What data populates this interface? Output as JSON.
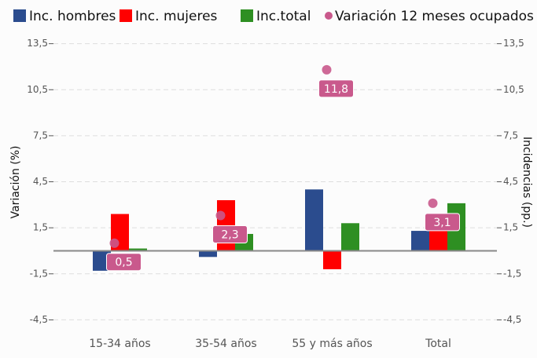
{
  "chart_data": {
    "type": "bar",
    "categories": [
      "15-34 años",
      "35-54 años",
      "55 y más años",
      "Total"
    ],
    "series": [
      {
        "name": "Inc. hombres",
        "color": "#2b4c8e",
        "values": [
          -1.3,
          -0.4,
          4.0,
          1.3
        ]
      },
      {
        "name": "Inc. mujeres",
        "color": "#ff0000",
        "values": [
          2.4,
          3.3,
          -1.2,
          1.8
        ]
      },
      {
        "name": "Inc.total",
        "color": "#2e8f22",
        "values": [
          0.15,
          1.1,
          1.8,
          3.1
        ]
      },
      {
        "name": "Variación 12 meses ocupados",
        "color": "#c9598c",
        "type": "scatter",
        "values": [
          0.5,
          2.3,
          11.8,
          3.1
        ],
        "value_labels": [
          "0,5",
          "2,3",
          "11,8",
          "3,1"
        ]
      }
    ],
    "ylabel": "Variación (%)",
    "y2label": "Incidencias (pp.)",
    "ylim": [
      -5.4,
      14.3
    ],
    "yticks": [
      {
        "value": -4.5,
        "label": "-4,5"
      },
      {
        "value": -1.5,
        "label": "-1,5"
      },
      {
        "value": 1.5,
        "label": "1,5"
      },
      {
        "value": 4.5,
        "label": "4,5"
      },
      {
        "value": 7.5,
        "label": "7,5"
      },
      {
        "value": 10.5,
        "label": "10,5"
      },
      {
        "value": 13.5,
        "label": "13,5"
      }
    ],
    "y2lim": [
      -5.4,
      14.3
    ],
    "y2ticks": [
      {
        "value": -4.5,
        "label": "-4,5"
      },
      {
        "value": -1.5,
        "label": "-1,5"
      },
      {
        "value": 1.5,
        "label": "1,5"
      },
      {
        "value": 4.5,
        "label": "4,5"
      },
      {
        "value": 7.5,
        "label": "7,5"
      },
      {
        "value": 10.5,
        "label": "10,5"
      },
      {
        "value": 13.5,
        "label": "13,5"
      }
    ],
    "grid": true,
    "legend": "top"
  }
}
